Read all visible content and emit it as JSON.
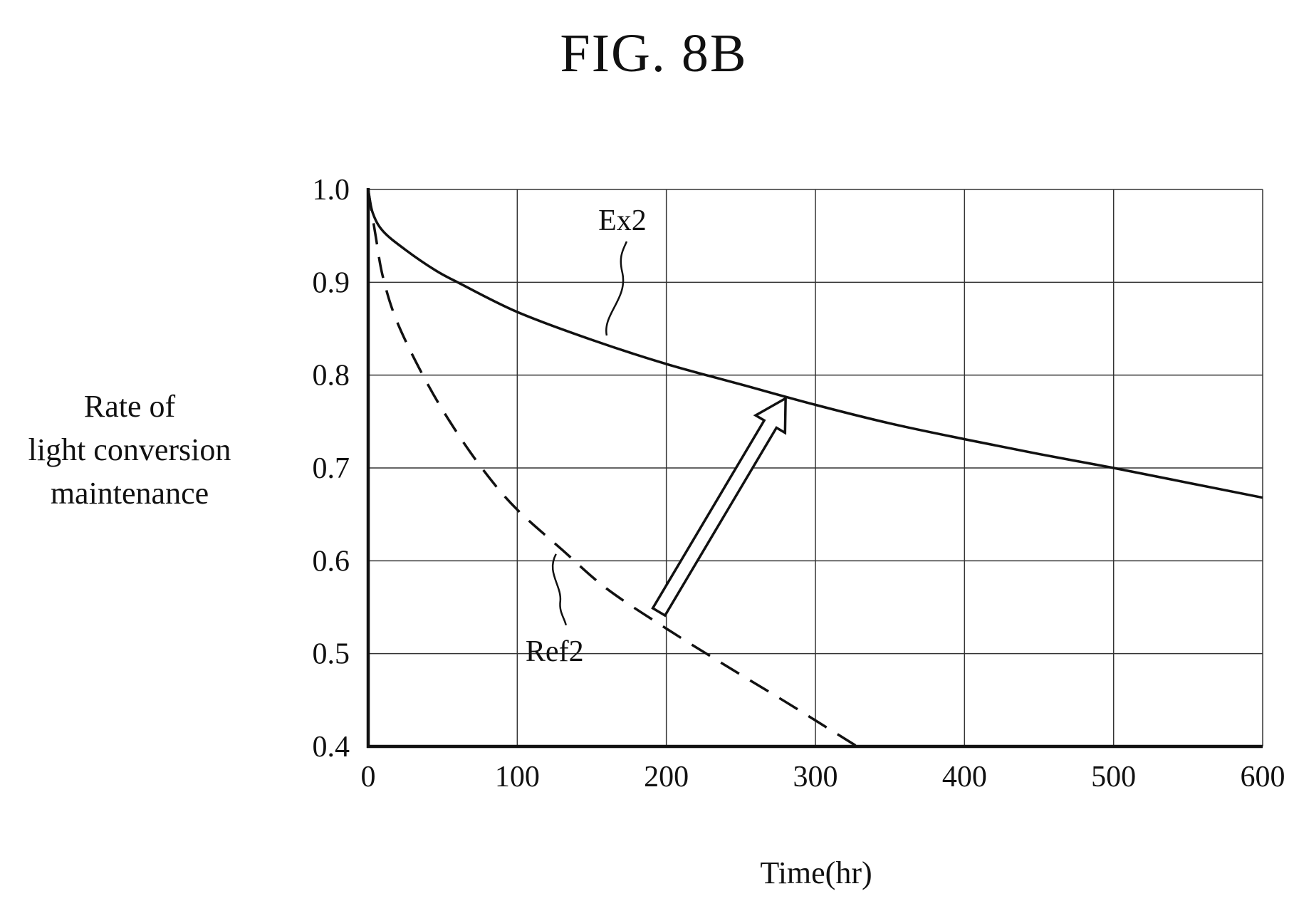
{
  "figure": {
    "title": "FIG. 8B"
  },
  "chart_data": {
    "type": "line",
    "xlabel": "Time(hr)",
    "ylabel": "Rate of light conversion maintenance",
    "ylabel_lines": [
      "Rate of",
      "light conversion",
      "maintenance"
    ],
    "xlim": [
      0,
      600
    ],
    "ylim": [
      0.4,
      1.0
    ],
    "x_ticks": [
      0,
      100,
      200,
      300,
      400,
      500,
      600
    ],
    "x_tick_labels": [
      "0",
      "100",
      "200",
      "300",
      "400",
      "500",
      "600"
    ],
    "y_ticks": [
      0.4,
      0.5,
      0.6,
      0.7,
      0.8,
      0.9,
      1.0
    ],
    "y_tick_labels": [
      "0.4",
      "0.5",
      "0.6",
      "0.7",
      "0.8",
      "0.9",
      "1.0"
    ],
    "grid": true,
    "legend": "none",
    "series": [
      {
        "name": "Ex2",
        "style": "solid",
        "color": "#111111",
        "x": [
          0,
          3,
          10,
          25,
          45,
          60,
          100,
          150,
          200,
          250,
          300,
          350,
          400,
          450,
          500,
          550,
          600
        ],
        "y": [
          1.0,
          0.975,
          0.955,
          0.935,
          0.913,
          0.9,
          0.868,
          0.838,
          0.812,
          0.79,
          0.768,
          0.748,
          0.731,
          0.715,
          0.7,
          0.684,
          0.668
        ]
      },
      {
        "name": "Ref2",
        "style": "dashed",
        "color": "#111111",
        "x": [
          0,
          5,
          10,
          20,
          40,
          60,
          80,
          100,
          130,
          160,
          200,
          240,
          280,
          310,
          328
        ],
        "y": [
          1.0,
          0.95,
          0.905,
          0.855,
          0.79,
          0.737,
          0.692,
          0.655,
          0.612,
          0.57,
          0.527,
          0.487,
          0.448,
          0.418,
          0.4
        ]
      }
    ],
    "annotations": {
      "arrow": {
        "from": [
          195,
          0.545
        ],
        "to": [
          280,
          0.775
        ],
        "meaning": "improvement"
      }
    }
  }
}
